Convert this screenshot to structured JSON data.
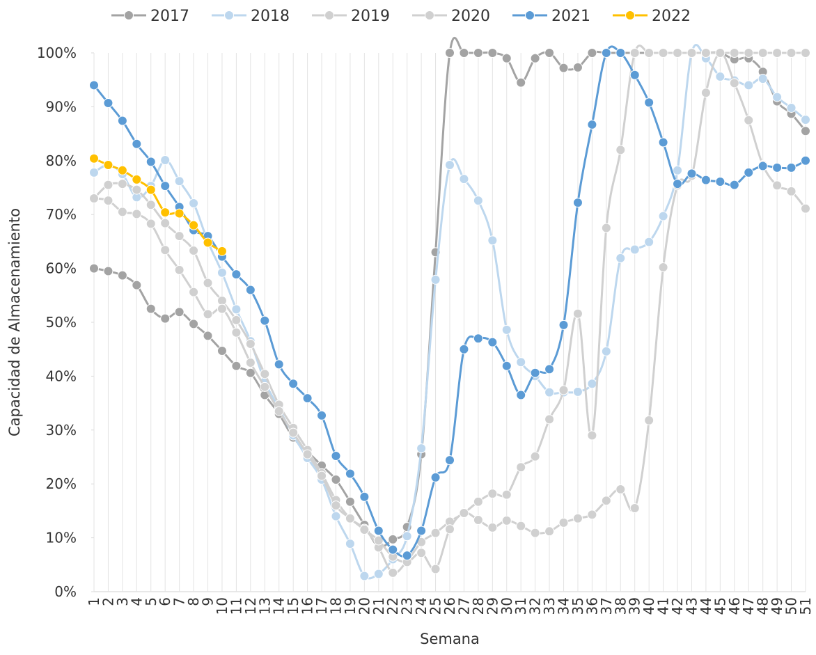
{
  "chart_data": {
    "type": "line",
    "x_label": "Semana",
    "y_label": "Capacidad de Almacenamiento",
    "categories": [
      "1",
      "2",
      "3",
      "4",
      "5",
      "6",
      "7",
      "8",
      "9",
      "10",
      "11",
      "12",
      "13",
      "14",
      "15",
      "16",
      "17",
      "18",
      "19",
      "20",
      "21",
      "22",
      "23",
      "24",
      "25",
      "26",
      "27",
      "28",
      "29",
      "30",
      "31",
      "32",
      "33",
      "34",
      "35",
      "36",
      "37",
      "38",
      "39",
      "40",
      "41",
      "42",
      "43",
      "44",
      "45",
      "46",
      "47",
      "48",
      "49",
      "50",
      "51"
    ],
    "ylim": [
      0,
      100
    ],
    "yticks": [
      {
        "value": 0,
        "label": "0%"
      },
      {
        "value": 10,
        "label": "10%"
      },
      {
        "value": 20,
        "label": "20%"
      },
      {
        "value": 30,
        "label": "30%"
      },
      {
        "value": 40,
        "label": "40%"
      },
      {
        "value": 50,
        "label": "50%"
      },
      {
        "value": 60,
        "label": "60%"
      },
      {
        "value": 70,
        "label": "70%"
      },
      {
        "value": 80,
        "label": "80%"
      },
      {
        "value": 90,
        "label": "90%"
      },
      {
        "value": 100,
        "label": "100%"
      }
    ],
    "grid": true,
    "legend": "top",
    "series": [
      {
        "name": "2017",
        "color": "#a3a3a3",
        "values": [
          60,
          59.5,
          58.7,
          56.9,
          52.5,
          50.7,
          51.9,
          49.7,
          47.5,
          44.7,
          41.9,
          40.6,
          36.5,
          33,
          28.6,
          26,
          23.4,
          20.8,
          16.7,
          12.4,
          8.4,
          9.7,
          12,
          25.5,
          63,
          100,
          100,
          100,
          100,
          99,
          94.5,
          99,
          100,
          97.2,
          97.3,
          100,
          100,
          100,
          100,
          100,
          100,
          100,
          100,
          100,
          100,
          98.8,
          99,
          96.5,
          91,
          88.7,
          85.5
        ]
      },
      {
        "name": "2018",
        "color": "#bdd7ee",
        "values": [
          77.8,
          79.2,
          77.5,
          73.2,
          75.3,
          80.1,
          76.2,
          72.1,
          65,
          59.2,
          52.4,
          46.5,
          39,
          34,
          29,
          24.8,
          20.8,
          14,
          8.9,
          2.9,
          3.3,
          6,
          10.3,
          26.6,
          57.9,
          79.2,
          76.6,
          72.6,
          65.2,
          48.6,
          42.6,
          40,
          37,
          37,
          37.1,
          38.6,
          44.6,
          61.9,
          63.5,
          64.9,
          69.7,
          78.2,
          100,
          99,
          95.6,
          94.9,
          94,
          95.2,
          91.8,
          89.8,
          87.6
        ]
      },
      {
        "name": "2019",
        "color": "#d0d0d0",
        "values": [
          73,
          75.5,
          75.7,
          74.6,
          71.8,
          68.4,
          66,
          63.3,
          57.3,
          54,
          50.4,
          46,
          40.4,
          34.7,
          30.4,
          26.3,
          22,
          17,
          13.6,
          11.7,
          8.2,
          3.5,
          5.7,
          9.2,
          10.9,
          13,
          14.6,
          16.7,
          18.2,
          18,
          23.1,
          25.1,
          32,
          37.4,
          51.6,
          29,
          67.5,
          82,
          100,
          100,
          100,
          100,
          100,
          100,
          100,
          100,
          100,
          100,
          100,
          100,
          100
        ]
      },
      {
        "name": "2020",
        "color": "#d0d0d0",
        "values": [
          73,
          72.6,
          70.5,
          70.1,
          68.3,
          63.4,
          59.7,
          55.6,
          51.5,
          52.5,
          48.1,
          42.5,
          38,
          33.5,
          29.5,
          25.5,
          21.5,
          16,
          13.6,
          11.5,
          9.5,
          6.5,
          5.5,
          7.2,
          4.2,
          11.6,
          14.6,
          13.3,
          11.9,
          13.2,
          12.2,
          10.9,
          11.2,
          12.8,
          13.6,
          14.3,
          16.9,
          19,
          15.5,
          31.8,
          60.2,
          75.4,
          77.2,
          92.6,
          100,
          94.4,
          87.5,
          79.2,
          75.4,
          74.3,
          71.1
        ]
      },
      {
        "name": "2021",
        "color": "#5b9bd5",
        "values": [
          94,
          90.7,
          87.4,
          83.1,
          79.8,
          75.3,
          71.4,
          67.1,
          66,
          62.2,
          58.9,
          56,
          50.3,
          42.2,
          38.6,
          35.9,
          32.7,
          25.2,
          21.9,
          17.6,
          11.3,
          7.8,
          6.7,
          11.3,
          21.2,
          24.4,
          45,
          47,
          46.3,
          41.9,
          36.5,
          40.6,
          41.3,
          49.5,
          72.2,
          86.7,
          100,
          100,
          95.9,
          90.8,
          83.4,
          75.7,
          77.6,
          76.4,
          76.1,
          75.5,
          77.8,
          79,
          78.7,
          78.7,
          80
        ]
      },
      {
        "name": "2022",
        "color": "#ffc000",
        "values": [
          80.4,
          79.2,
          78.2,
          76.5,
          74.6,
          70.4,
          70.2,
          68,
          64.8,
          63.2,
          null,
          null,
          null,
          null,
          null,
          null,
          null,
          null,
          null,
          null,
          null,
          null,
          null,
          null,
          null,
          null,
          null,
          null,
          null,
          null,
          null,
          null,
          null,
          null,
          null,
          null,
          null,
          null,
          null,
          null,
          null,
          null,
          null,
          null,
          null,
          null,
          null,
          null,
          null,
          null,
          null
        ]
      }
    ]
  }
}
